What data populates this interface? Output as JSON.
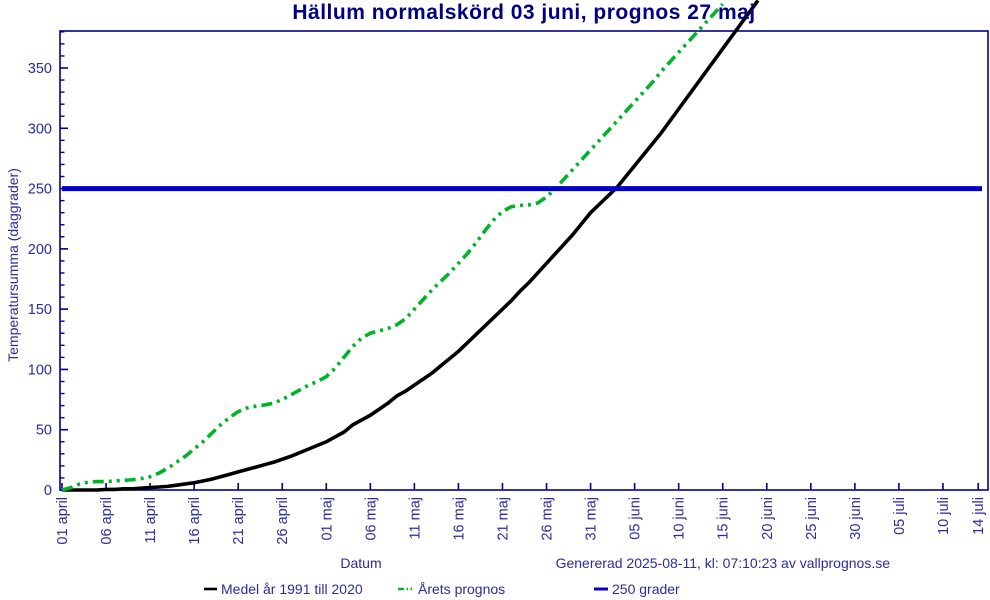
{
  "colors": {
    "title_text": "#000080",
    "label_text": "#2b2b9e",
    "axis": "#00008b",
    "mean_line": "#000000",
    "forecast_line": "#00b428",
    "reference_line": "#0000cd",
    "background": "#ffffff"
  },
  "footer": {
    "generated_note": "Genererad 2025-08-11, kl: 07:10:23 av vallprognos.se"
  },
  "chart_data": {
    "type": "line",
    "title": "Hällum normalskörd 03 juni, prognos 27 maj",
    "xlabel": "Datum",
    "ylabel": "Temperatursumma (daggrader)",
    "x_unit": "days since 01 april",
    "ylim": [
      0,
      380
    ],
    "grid": false,
    "legend_position": "bottom",
    "yticks_major": [
      0,
      50,
      100,
      150,
      200,
      250,
      300,
      350
    ],
    "ytick_minor_step": 10,
    "x_ticks": [
      {
        "day": 0,
        "label": "01 april"
      },
      {
        "day": 5,
        "label": "06 april"
      },
      {
        "day": 10,
        "label": "11 april"
      },
      {
        "day": 15,
        "label": "16 april"
      },
      {
        "day": 20,
        "label": "21 april"
      },
      {
        "day": 25,
        "label": "26 april"
      },
      {
        "day": 30,
        "label": "01 maj"
      },
      {
        "day": 35,
        "label": "06 maj"
      },
      {
        "day": 40,
        "label": "11 maj"
      },
      {
        "day": 45,
        "label": "16 maj"
      },
      {
        "day": 50,
        "label": "21 maj"
      },
      {
        "day": 55,
        "label": "26 maj"
      },
      {
        "day": 60,
        "label": "31 maj"
      },
      {
        "day": 65,
        "label": "05 juni"
      },
      {
        "day": 70,
        "label": "10 juni"
      },
      {
        "day": 75,
        "label": "15 juni"
      },
      {
        "day": 80,
        "label": "20 juni"
      },
      {
        "day": 85,
        "label": "25 juni"
      },
      {
        "day": 90,
        "label": "30 juni"
      },
      {
        "day": 95,
        "label": "05 juli"
      },
      {
        "day": 100,
        "label": "10 juli"
      },
      {
        "day": 104,
        "label": "14 juli"
      }
    ],
    "ref_line": {
      "value": 250,
      "label": "250 grader",
      "color": "#0000cd"
    },
    "series": [
      {
        "name": "Medel år 1991 till 2020",
        "color": "#000000",
        "dash": "solid",
        "day_start": 0,
        "values": [
          0,
          0,
          0,
          0,
          0,
          0.5,
          0.5,
          1,
          1,
          1.5,
          2,
          2.5,
          3,
          4,
          5,
          6,
          7.5,
          9,
          11,
          13,
          15,
          17,
          19,
          21,
          23,
          25.5,
          28,
          31,
          34,
          37,
          40,
          44,
          48,
          54,
          58,
          62,
          67,
          72,
          78,
          82,
          87,
          92,
          97,
          103,
          109,
          115,
          122,
          129,
          136,
          143,
          150,
          157,
          165,
          172,
          180,
          188,
          196,
          204,
          212,
          221,
          230,
          237,
          244,
          251,
          260,
          269,
          278,
          287,
          296,
          306,
          316,
          326,
          336,
          346,
          356,
          366,
          376,
          386,
          396,
          406
        ]
      },
      {
        "name": "Årets prognos",
        "color": "#00b428",
        "dash": "dash-dot-dot",
        "day_start": 0,
        "values": [
          0,
          2,
          5,
          6.5,
          7,
          7,
          7.5,
          8,
          8.5,
          9.5,
          11,
          14,
          18,
          23,
          28,
          34,
          40,
          47,
          54,
          60,
          65,
          68,
          69.5,
          70.5,
          72,
          75,
          79,
          83,
          87,
          90,
          94,
          101,
          110,
          119,
          126,
          130,
          132,
          134,
          137,
          142,
          150,
          158,
          166,
          173,
          180,
          188,
          196,
          205,
          215,
          224,
          231,
          235,
          236,
          236.5,
          238,
          243,
          250,
          258,
          266,
          274,
          282,
          290,
          298,
          306,
          314,
          322,
          330,
          338,
          347,
          355,
          363,
          371,
          379,
          387,
          395,
          403
        ]
      }
    ],
    "annotations": {
      "mean_reaches_250": "03 juni",
      "forecast_reaches_250": "27 maj"
    }
  }
}
